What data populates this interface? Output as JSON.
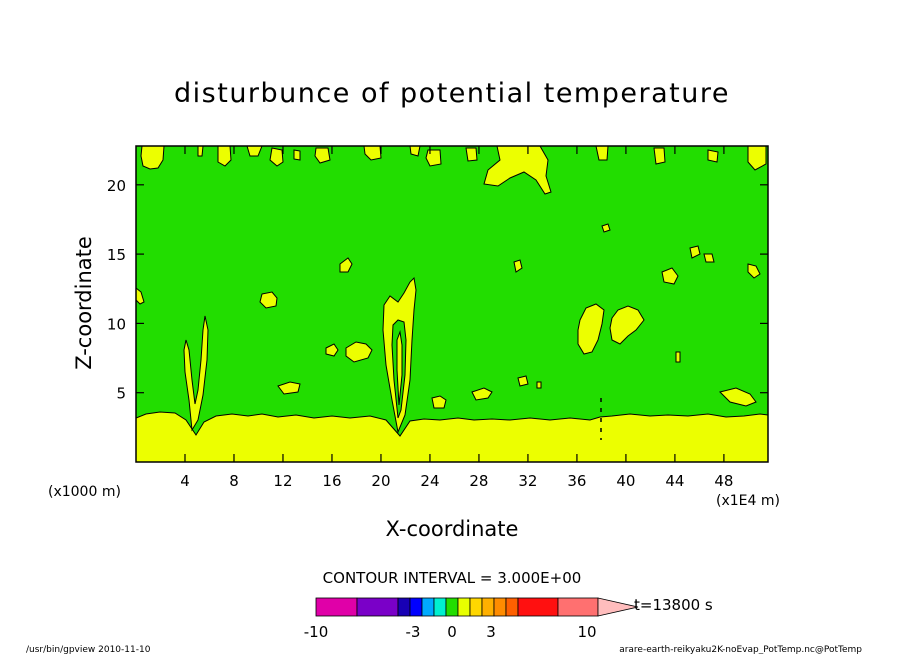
{
  "chart_data": {
    "type": "heatmap",
    "title": "disturbunce of potential temperature",
    "xlabel": "X-coordinate",
    "ylabel": "Z-coordinate",
    "x_unit_left": "(x1000 m)",
    "x_unit_right": "(x1E4 m)",
    "xlim": [
      0,
      51.6
    ],
    "ylim": [
      0,
      22.8
    ],
    "xticks": [
      4,
      8,
      12,
      16,
      20,
      24,
      28,
      32,
      36,
      40,
      44,
      48
    ],
    "yticks": [
      5,
      10,
      15,
      20
    ],
    "contour_interval_label": "CONTOUR INTERVAL = 3.000E+00",
    "time_label": "t=13800 s",
    "colorbar": {
      "colors": [
        "#e000a8",
        "#7a00c8",
        "#1800b4",
        "#0000ff",
        "#00aaff",
        "#00f0d0",
        "#22dd00",
        "#e8ff00",
        "#ffd700",
        "#ffb000",
        "#ff8c00",
        "#ff6000",
        "#ff1010",
        "#ff7070",
        "#ffbdbd"
      ],
      "tick_labels": [
        "-10",
        "-3",
        "0",
        "3",
        "10"
      ]
    },
    "background_field": {
      "color": "#22dd00",
      "value_range": [
        0,
        3
      ]
    },
    "surface_layer": {
      "color": "#ecff00",
      "top_z": 3.3
    },
    "plumes": [
      {
        "x": 4.8,
        "base_z": 2.0,
        "top_z": 10.8
      },
      {
        "x": 21.5,
        "base_z": 2.0,
        "top_z": 13.2
      }
    ],
    "grid": false,
    "legend": "bottom-colorbar"
  },
  "footer": {
    "left": "/usr/bin/gpview  2010-11-10",
    "right": "arare-earth-reikyaku2K-noEvap_PotTemp.nc@PotTemp"
  }
}
